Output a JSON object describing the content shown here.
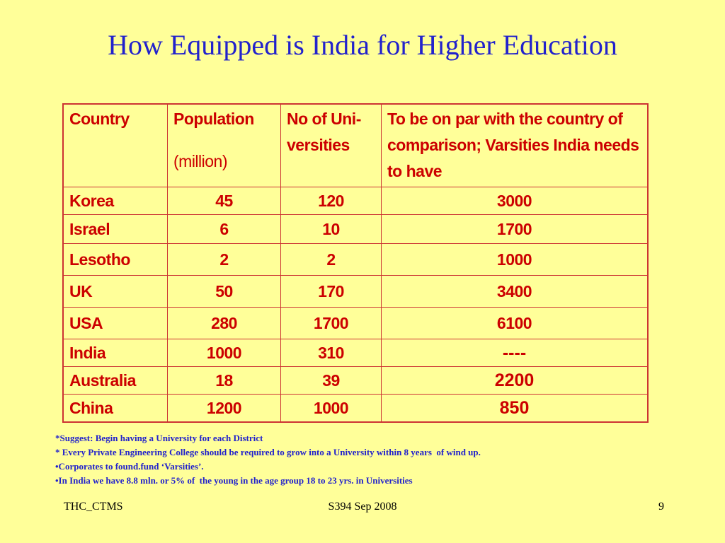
{
  "slide": {
    "title": "How Equipped is India for Higher Education"
  },
  "table": {
    "headers": {
      "country": "Country",
      "population": "Population",
      "population_unit": "(million)",
      "universities": "No of Uni- versities",
      "needed": "To be on par with the country of comparison; Varsities India needs to have"
    },
    "rows": [
      {
        "country": "Korea",
        "population": "45",
        "universities": "120",
        "needed": "3000"
      },
      {
        "country": "Israel",
        "population": "6",
        "universities": "10",
        "needed": "1700"
      },
      {
        "country": "Lesotho",
        "population": "2",
        "universities": "2",
        "needed": "1000"
      },
      {
        "country": "UK",
        "population": "50",
        "universities": "170",
        "needed": "3400"
      },
      {
        "country": "USA",
        "population": "280",
        "universities": "1700",
        "needed": "6100"
      },
      {
        "country": "India",
        "population": "1000",
        "universities": "310",
        "needed": "----"
      },
      {
        "country": "Australia",
        "population": "18",
        "universities": "39",
        "needed": "2200"
      },
      {
        "country": "China",
        "population": "1200",
        "universities": "1000",
        "needed": "850"
      }
    ]
  },
  "notes": [
    "*Suggest: Begin having a University for each District",
    "* Every Private Engineering College should be required to grow into a University within 8 years  of wind up.",
    "•Corporates to found.fund ‘Varsities’.",
    "•In India we have 8.8 mln. or 5% of  the young in the age group 18 to 23 yrs. in Universities"
  ],
  "footer": {
    "left": "THC_CTMS",
    "center": "S394 Sep 2008",
    "page_number": "9"
  },
  "colors": {
    "background": "#ffff99",
    "title": "#2222cc",
    "table_text": "#cc0000",
    "table_border": "#cc3333",
    "notes": "#2222cc"
  }
}
